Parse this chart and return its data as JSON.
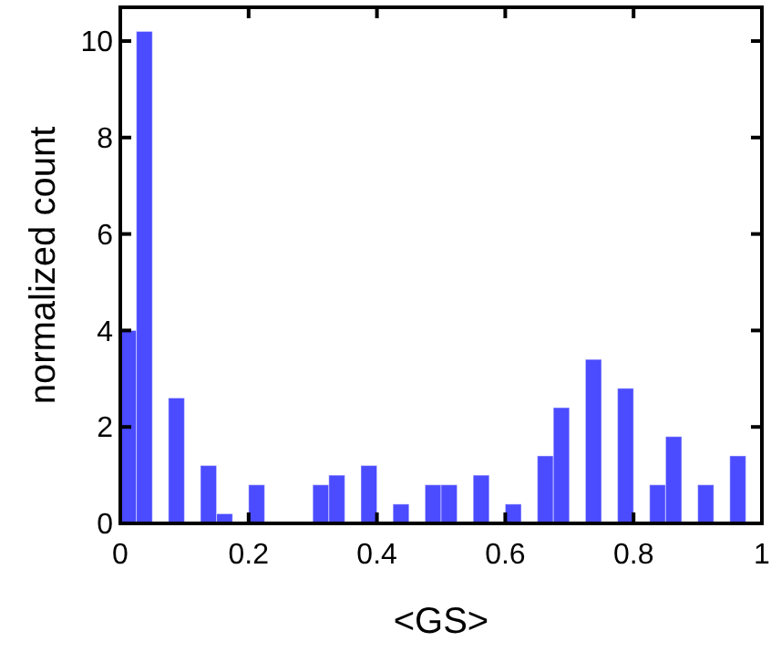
{
  "chart_data": {
    "type": "histogram",
    "xlabel": "<GS>",
    "ylabel": "normalized count",
    "color": "#4b4bff",
    "bins": [
      0,
      0.025,
      0.05,
      0.075,
      0.1,
      0.125,
      0.15,
      0.175,
      0.2,
      0.225,
      0.25,
      0.275,
      0.3,
      0.325,
      0.35,
      0.375,
      0.4,
      0.425,
      0.45,
      0.475,
      0.5,
      0.525,
      0.55,
      0.575,
      0.6,
      0.625,
      0.65,
      0.675,
      0.7,
      0.725,
      0.75,
      0.775,
      0.8,
      0.825,
      0.85,
      0.875,
      0.9,
      0.925,
      0.95,
      0.975,
      1
    ],
    "values": [
      4.0,
      10.2,
      0,
      2.6,
      0,
      1.2,
      0.2,
      0,
      0.8,
      0,
      0,
      0,
      0.8,
      1.0,
      0,
      1.2,
      0,
      0.4,
      0,
      0.8,
      0.8,
      0,
      1.0,
      0,
      0.4,
      0,
      1.4,
      2.4,
      0,
      3.4,
      0,
      2.8,
      0,
      0.8,
      1.8,
      0,
      0.8,
      0,
      1.4,
      0
    ],
    "xlim": [
      0,
      1
    ],
    "xticks": [
      0,
      0.2,
      0.4,
      0.6,
      0.8,
      1
    ],
    "ylim": [
      0,
      10.7
    ],
    "yticks": [
      0,
      2,
      4,
      6,
      8,
      10
    ],
    "grid": false
  }
}
